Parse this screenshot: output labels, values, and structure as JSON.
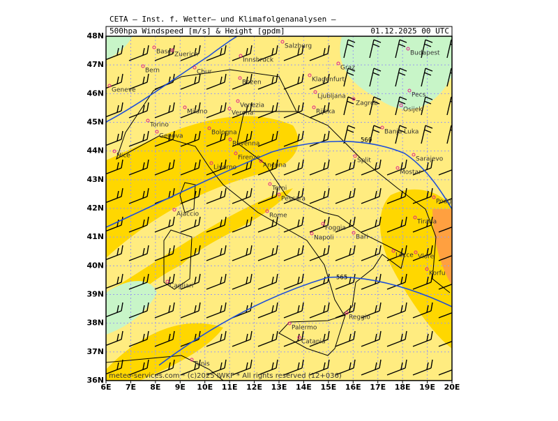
{
  "header": {
    "title": "CETA – Inst. f. Wetter– und Klimafolgenanalysen –",
    "parameter": "500hpa Windspeed [m/s] & Height [gpdm]",
    "valid_time": "01.12.2025 00 UTC"
  },
  "map": {
    "lon_labels": [
      "6E",
      "7E",
      "8E",
      "9E",
      "10E",
      "11E",
      "12E",
      "13E",
      "14E",
      "15E",
      "16E",
      "17E",
      "18E",
      "19E",
      "20E"
    ],
    "lat_labels": [
      "36N",
      "37N",
      "38N",
      "39N",
      "40N",
      "41N",
      "42N",
      "43N",
      "44N",
      "45N",
      "46N",
      "47N",
      "48N"
    ],
    "contour_labels": [
      "560",
      "565"
    ],
    "cities": [
      "Basel",
      "Zuerich",
      "Bern",
      "Chur",
      "Innsbruck",
      "Salzburg",
      "Bozen",
      "Graz",
      "Budapest",
      "Geneve",
      "Klagenfurt",
      "Ljubljana",
      "Zagreb",
      "Pecs",
      "Milano",
      "Verona",
      "Venezia",
      "Rijeka",
      "Osijek",
      "Torino",
      "Banja Luka",
      "Genova",
      "Bologna",
      "Ravenna",
      "Sarajevo",
      "Nice",
      "Firenze",
      "Ancona",
      "Split",
      "Mostar",
      "Livorno",
      "Terni",
      "Podgorica",
      "Pescara",
      "Ajaccio",
      "Rome",
      "Tirana",
      "Foggia",
      "Bari",
      "Napoli",
      "Lecce",
      "Vlore",
      "Korfu",
      "Cagliari",
      "Palermo",
      "Reggio",
      "Catania",
      "Tunis"
    ]
  },
  "footer": "meteo-services.com * (c)2025 IWKF * All rights reserved (12+036)"
}
